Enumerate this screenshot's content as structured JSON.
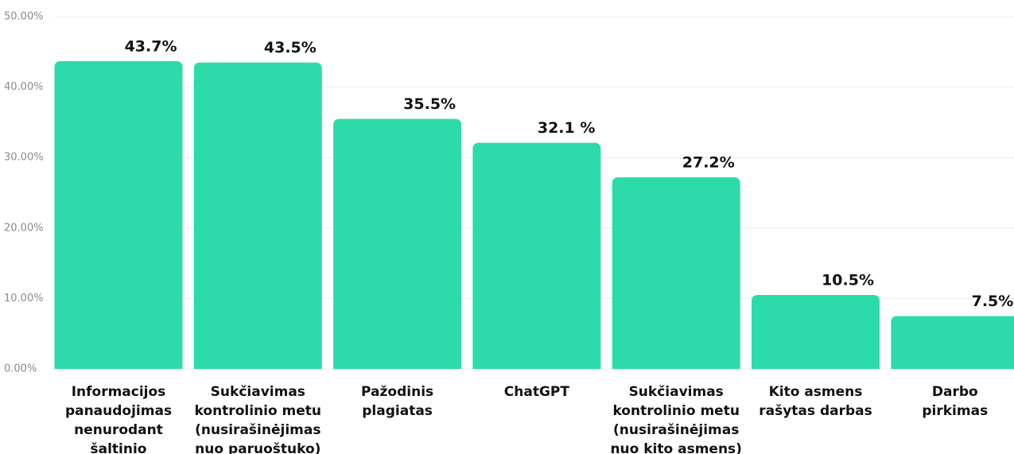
{
  "chart_data": {
    "type": "bar",
    "categories": [
      [
        "Informacijos",
        "panaudojimas",
        "nenurodant",
        "šaltinio"
      ],
      [
        "Sukčiavimas",
        "kontrolinio metu",
        "(nusirašinėjimas",
        "nuo paruoštuko)"
      ],
      [
        "Pažodinis",
        "plagiatas"
      ],
      [
        "ChatGPT"
      ],
      [
        "Sukčiavimas",
        "kontrolinio metu",
        "(nusirašinėjimas",
        "nuo kito asmens)"
      ],
      [
        "Kito asmens",
        "rašytas darbas"
      ],
      [
        "Darbo",
        "pirkimas"
      ]
    ],
    "values": [
      43.7,
      43.5,
      35.5,
      32.1,
      27.2,
      10.5,
      7.5
    ],
    "value_labels": [
      "43.7%",
      "43.5%",
      "35.5%",
      "32.1 %",
      "27.2%",
      "10.5%",
      "7.5%"
    ],
    "color": "#2ddbaa",
    "ylim": [
      0,
      50
    ],
    "yticks": [
      {
        "value": 0,
        "label": "0.00%"
      },
      {
        "value": 10,
        "label": "10.00%"
      },
      {
        "value": 20,
        "label": "20.00%"
      },
      {
        "value": 30,
        "label": "30.00%"
      },
      {
        "value": 40,
        "label": "40.00%"
      },
      {
        "value": 50,
        "label": "50.00%"
      }
    ],
    "grid": true
  }
}
